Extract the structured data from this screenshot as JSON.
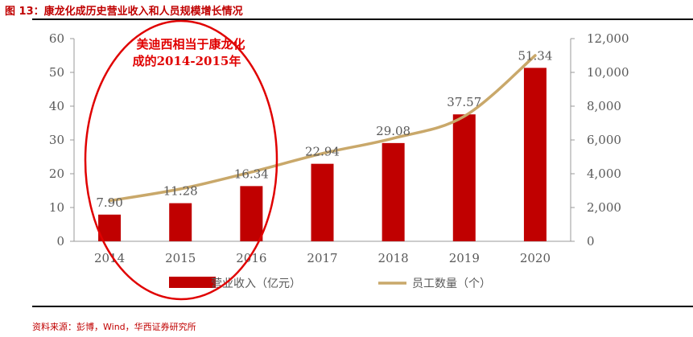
{
  "figure": {
    "title": "图 13：康龙化成历史营业收入和人员规模增长情况",
    "source": "资料来源：彭博，Wind，华西证券研究所"
  },
  "annotation": {
    "line1": "美迪西相当于康龙化",
    "line2": "成的2014-2015年",
    "color": "#e00000"
  },
  "colors": {
    "bar": "#c00000",
    "line": "#c9a86a",
    "axis": "#999999",
    "text": "#595959"
  },
  "chart_data": {
    "type": "bar",
    "categories": [
      "2014",
      "2015",
      "2016",
      "2017",
      "2018",
      "2019",
      "2020"
    ],
    "series": [
      {
        "name": "营业收入（亿元）",
        "type": "bar",
        "axis": "left",
        "values": [
          7.9,
          11.28,
          16.34,
          22.94,
          29.08,
          37.57,
          51.34
        ],
        "labels": [
          "7.90",
          "11.28",
          "16.34",
          "22.94",
          "29.08",
          "37.57",
          "51.34"
        ]
      },
      {
        "name": "员工数量（个）",
        "type": "line",
        "axis": "right",
        "values": [
          2400,
          3100,
          4100,
          5200,
          6100,
          7400,
          11000
        ]
      }
    ],
    "y_left": {
      "lim": [
        0,
        60
      ],
      "ticks": [
        "0",
        "10",
        "20",
        "30",
        "40",
        "50",
        "60"
      ]
    },
    "y_right": {
      "lim": [
        0,
        12000
      ],
      "ticks": [
        "0",
        "2,000",
        "4,000",
        "6,000",
        "8,000",
        "10,000",
        "12,000"
      ]
    },
    "grid": false,
    "legend_position": "bottom"
  }
}
